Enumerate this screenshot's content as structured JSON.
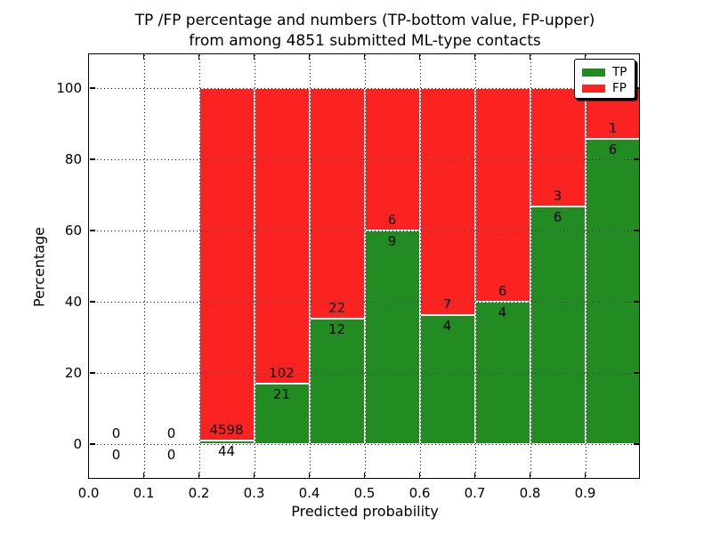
{
  "figure": {
    "title_line1": "TP /FP percentage and numbers (TP-bottom value, FP-upper)",
    "title_line2": "from among 4851 submitted ML-type contacts",
    "background_color": "#ffffff"
  },
  "chart_data": {
    "type": "bar",
    "stacked": true,
    "title": "TP /FP percentage and numbers (TP-bottom value, FP-upper)\nfrom among 4851 submitted ML-type contacts",
    "xlabel": "Predicted probability",
    "ylabel": "Percentage",
    "total_contacts": 4851,
    "xlim": [
      0.0,
      1.0
    ],
    "ylim": [
      -9.75,
      109.5
    ],
    "xtick_labels": [
      "0.0",
      "0.1",
      "0.2",
      "0.3",
      "0.4",
      "0.5",
      "0.6",
      "0.7",
      "0.8",
      "0.9"
    ],
    "xtick_values": [
      0.0,
      0.1,
      0.2,
      0.3,
      0.4,
      0.5,
      0.6,
      0.7,
      0.8,
      0.9
    ],
    "ytick_labels": [
      "0",
      "20",
      "40",
      "60",
      "80",
      "100"
    ],
    "ytick_values": [
      0,
      20,
      40,
      60,
      80,
      100
    ],
    "grid": "dotted",
    "grid_on": true,
    "bar_edge_color": "#ffffff",
    "bins": [
      {
        "range": [
          0.0,
          0.1
        ],
        "tp_count": "0",
        "fp_count": "0",
        "tp_pct": 0,
        "fp_pct": 0
      },
      {
        "range": [
          0.1,
          0.2
        ],
        "tp_count": "0",
        "fp_count": "0",
        "tp_pct": 0,
        "fp_pct": 0
      },
      {
        "range": [
          0.2,
          0.3
        ],
        "tp_count": "44",
        "fp_count": "4598",
        "tp_pct": 0.95,
        "fp_pct": 99.05
      },
      {
        "range": [
          0.3,
          0.4
        ],
        "tp_count": "21",
        "fp_count": "102",
        "tp_pct": 17.07,
        "fp_pct": 82.93
      },
      {
        "range": [
          0.4,
          0.5
        ],
        "tp_count": "12",
        "fp_count": "22",
        "tp_pct": 35.29,
        "fp_pct": 64.71
      },
      {
        "range": [
          0.5,
          0.6
        ],
        "tp_count": "9",
        "fp_count": "6",
        "tp_pct": 60.0,
        "fp_pct": 40.0
      },
      {
        "range": [
          0.6,
          0.7
        ],
        "tp_count": "4",
        "fp_count": "7",
        "tp_pct": 36.36,
        "fp_pct": 63.64
      },
      {
        "range": [
          0.7,
          0.8
        ],
        "tp_count": "4",
        "fp_count": "6",
        "tp_pct": 40.0,
        "fp_pct": 60.0
      },
      {
        "range": [
          0.8,
          0.9
        ],
        "tp_count": "6",
        "fp_count": "3",
        "tp_pct": 66.67,
        "fp_pct": 33.33
      },
      {
        "range": [
          0.9,
          1.0
        ],
        "tp_count": "6",
        "fp_count": "1",
        "tp_pct": 85.71,
        "fp_pct": 14.29
      }
    ],
    "legend": {
      "position": "upper right",
      "entries": [
        {
          "label": "TP",
          "color": "#228b22"
        },
        {
          "label": "FP",
          "color": "#fb2222"
        }
      ]
    },
    "colors": {
      "tp": "#228b22",
      "fp": "#fb2222",
      "grid": "#000000",
      "text": "#000000"
    }
  }
}
